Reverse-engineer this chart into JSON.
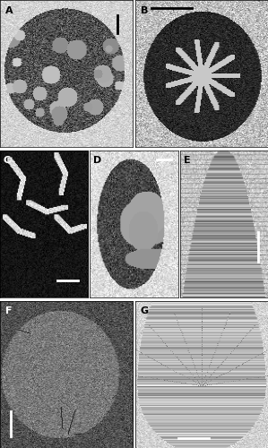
{
  "panel_labels": [
    "A",
    "B",
    "C",
    "D",
    "E",
    "F",
    "G"
  ],
  "label_color": "white",
  "label_A_color": "black",
  "background_color": "white",
  "border_color": "black",
  "border_linewidth": 0.5,
  "figure_width": 2.99,
  "figure_height": 5.0,
  "dpi": 100,
  "label_fontsize": 8,
  "label_fontweight": "bold",
  "scale_bar_color": "white",
  "scale_bar_color_B": "black",
  "scale_bar_color_A": "black"
}
